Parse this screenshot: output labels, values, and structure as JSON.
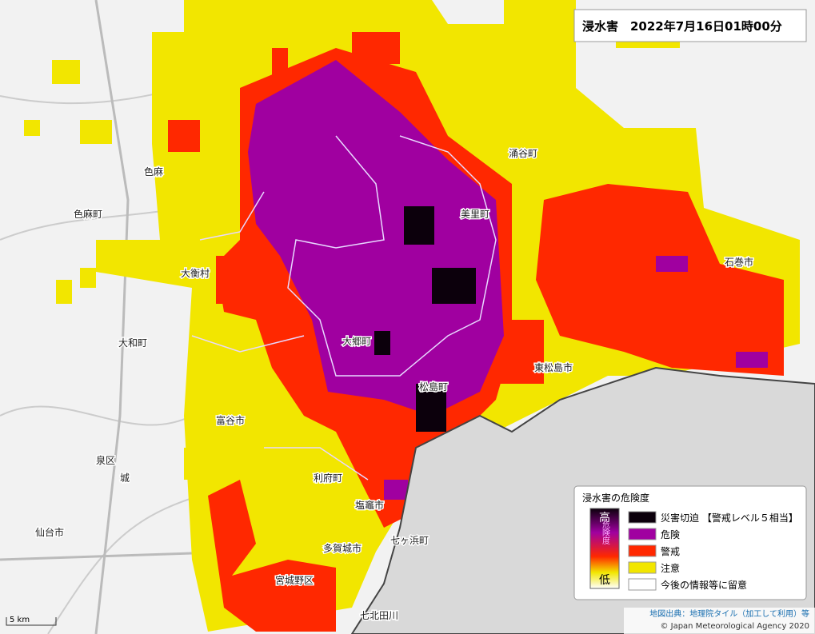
{
  "title": "浸水害　2022年7月16日01時00分",
  "places": [
    "涌谷町",
    "美里町",
    "色麻町",
    "色麻",
    "大衡村",
    "大和町",
    "大郷町",
    "松島町",
    "東松島市",
    "石巻市",
    "富谷市",
    "利府町",
    "塩竈市",
    "七ヶ浜町",
    "多賀城市",
    "仙台市",
    "宮城野区",
    "城",
    "七北田川",
    "泉区"
  ],
  "legend": {
    "title": "浸水害の危険度",
    "high": "高",
    "low": "低",
    "scale": "危険度",
    "items": [
      "災害切迫 【警戒レベル５相当】",
      "危険",
      "警戒",
      "注意",
      "今後の情報等に留意"
    ]
  },
  "attribution": [
    "地図出典：地理院タイル（加工して利用）等",
    "© Japan Meteorological Agency 2020"
  ],
  "scale_bar": "5 km"
}
